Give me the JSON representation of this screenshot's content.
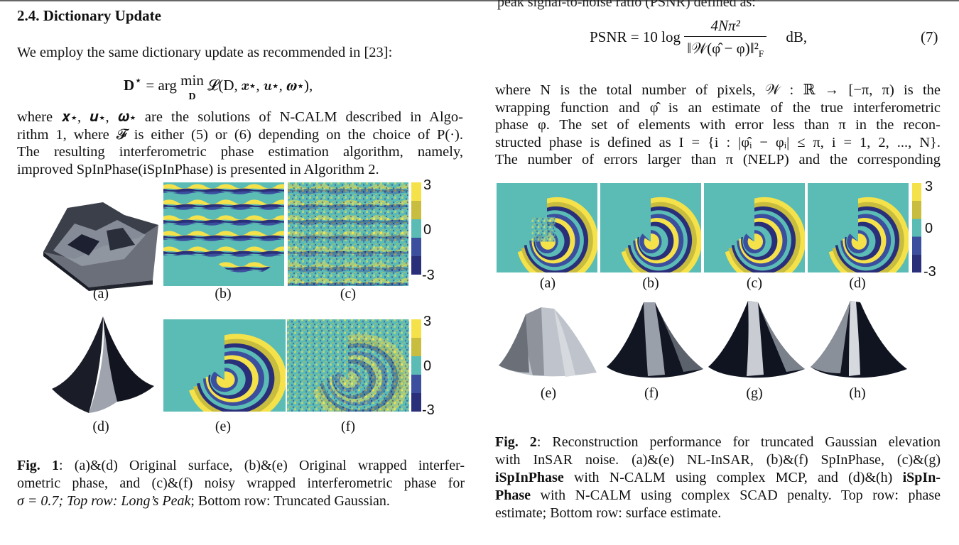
{
  "page": {
    "cut_line": "peak signal-to-noise ratio (PSNR) defined as:",
    "section_heading": "2.4.  Dictionary Update",
    "left_intro": "We employ the same dictionary update as recommended in [23]:",
    "eq_dict": {
      "lhs": "D",
      "star": "⋆",
      "eq": " = arg ",
      "op": "min",
      "sub": "D",
      "rhs": " 𝓛(D, 𝒙⋆, 𝒖⋆, 𝝎⋆),"
    },
    "left_para": [
      "where 𝒙⋆, 𝒖⋆, 𝝎⋆ are the solutions of N-CALM described in Algo-",
      "rithm 1, where 𝓕 is either (5) or (6) depending on the choice of P(·).",
      "The resulting interferometric phase estimation algorithm, namely,",
      "improved SpInPhase(iSpInPhase) is presented in Algorithm 2."
    ],
    "eq_psnr": {
      "lhs": "PSNR = 10 log",
      "num": "4Nπ²",
      "den": "‖𝒲(φ̂ − φ)‖²",
      "den_sub": "F",
      "unit": "dB,",
      "number": "(7)"
    },
    "right_para": [
      "where N is the total number of pixels, 𝒲 : ℝ → [−π, π) is the",
      "wrapping function and φ̂ is an estimate of the true interferometric",
      "phase φ.  The set of elements with error less than π in the recon-",
      "structed phase is defined as I = {i : |φ̂ᵢ − φᵢ| ≤ π, i = 1, 2, ..., N}.",
      "The number of errors larger than π (NELP) and the corresponding"
    ]
  },
  "fig1": {
    "labels": [
      "(a)",
      "(b)",
      "(c)",
      "(d)",
      "(e)",
      "(f)"
    ],
    "colorbar_ticks": [
      "3",
      "0",
      "-3"
    ],
    "caption": {
      "label": "Fig. 1",
      "lines": [
        ": (a)&(d) Original surface, (b)&(e) Original wrapped interfer-",
        "ometric phase, and (c)&(f) noisy wrapped interferometric phase for",
        "σ = 0.7; Top row: ",
        "Long’s Peak",
        "; Bottom row: Truncated Gaussian."
      ]
    }
  },
  "fig2": {
    "labels": [
      "(a)",
      "(b)",
      "(c)",
      "(d)",
      "(e)",
      "(f)",
      "(g)",
      "(h)"
    ],
    "colorbar_ticks": [
      "3",
      "0",
      "-3"
    ],
    "caption": {
      "label": "Fig. 2",
      "l1": ": Reconstruction performance for truncated Gaussian elevation",
      "l2": "with InSAR noise. (a)&(e) NL-InSAR, (b)&(f) SpInPhase, (c)&(g)",
      "l3a": "iSpInPhase",
      "l3b": " with N-CALM using complex MCP, and (d)&(h) ",
      "l3c": "iSpIn-",
      "l4a": "Phase",
      "l4b": " with N-CALM using complex SCAD penalty. Top row: phase",
      "l5": "estimate; Bottom row: surface estimate."
    }
  },
  "colors": {
    "teal": "#5bbcb6",
    "yellow": "#f5e24a",
    "olive": "#c8bd3e",
    "blue": "#3b4f9e",
    "navy": "#2a2f7a",
    "dark": "#121826"
  }
}
